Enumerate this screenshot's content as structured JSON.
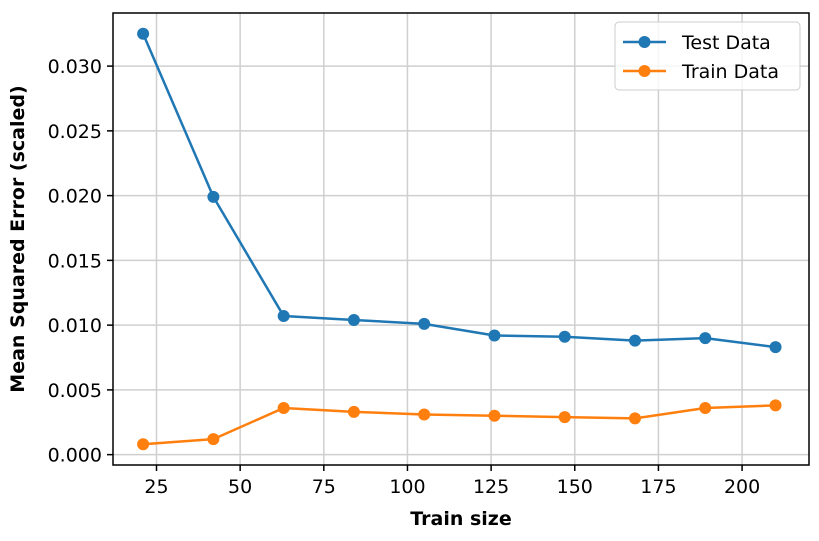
{
  "chart_data": {
    "type": "line",
    "xlabel": "Train size",
    "ylabel": "Mean Squared Error (scaled)",
    "xlim": [
      12,
      220
    ],
    "ylim": [
      -0.0008,
      0.0341
    ],
    "x_ticks": [
      25,
      50,
      75,
      100,
      125,
      150,
      175,
      200
    ],
    "y_ticks": [
      0.0,
      0.005,
      0.01,
      0.015,
      0.02,
      0.025,
      0.03
    ],
    "y_tick_labels": [
      "0.000",
      "0.005",
      "0.010",
      "0.015",
      "0.020",
      "0.025",
      "0.030"
    ],
    "grid": true,
    "legend_position": "top-right",
    "x": [
      21,
      42,
      63,
      84,
      105,
      126,
      147,
      168,
      189,
      210
    ],
    "series": [
      {
        "name": "Test Data",
        "color": "#1f77b4",
        "values": [
          0.0325,
          0.0199,
          0.0107,
          0.0104,
          0.0101,
          0.0092,
          0.0091,
          0.0088,
          0.009,
          0.0083
        ]
      },
      {
        "name": "Train Data",
        "color": "#ff7f0e",
        "values": [
          0.0008,
          0.0012,
          0.0036,
          0.0033,
          0.0031,
          0.003,
          0.0029,
          0.0028,
          0.0036,
          0.0038
        ]
      }
    ]
  }
}
